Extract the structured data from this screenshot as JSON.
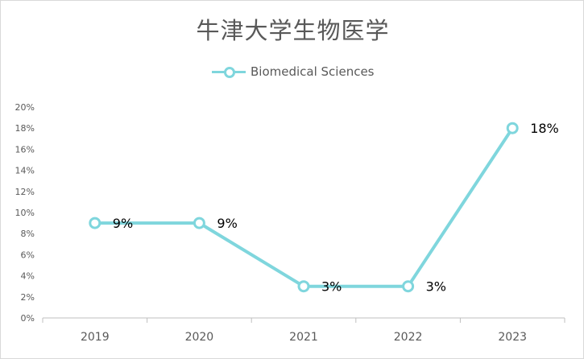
{
  "chart_data": {
    "type": "line",
    "title": "牛津大学生物医学",
    "categories": [
      "2019",
      "2020",
      "2021",
      "2022",
      "2023"
    ],
    "series": [
      {
        "name": "Biomedical Sciences",
        "values": [
          9,
          9,
          3,
          3,
          18
        ],
        "data_labels": [
          "9%",
          "9%",
          "3%",
          "3%",
          "18%"
        ]
      }
    ],
    "y_ticks": [
      "0%",
      "2%",
      "4%",
      "6%",
      "8%",
      "10%",
      "12%",
      "14%",
      "16%",
      "18%",
      "20%"
    ],
    "ylim": [
      0,
      20
    ],
    "grid": false,
    "legend_position": "top",
    "colors": {
      "series": "#7fd6dd",
      "axis": "#bfbfbf"
    }
  }
}
